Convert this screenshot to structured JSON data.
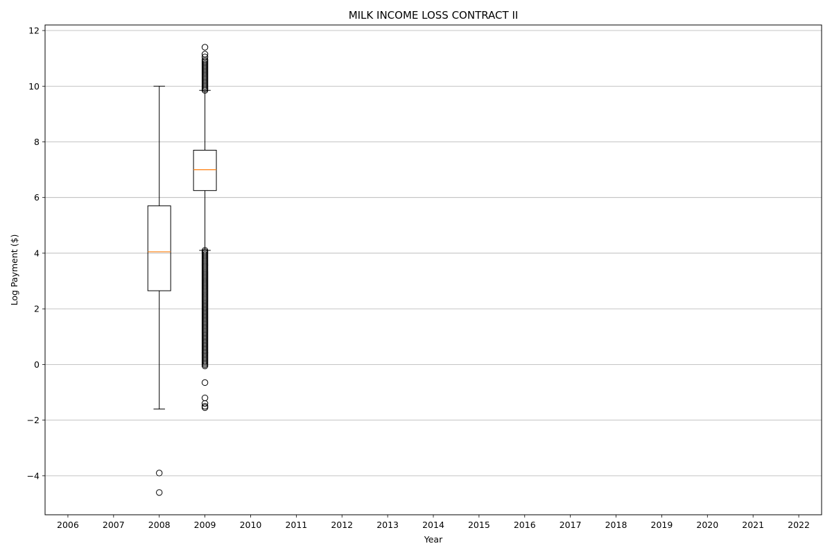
{
  "chart_data": {
    "type": "boxplot",
    "title": "MILK INCOME LOSS CONTRACT II",
    "xlabel": "Year",
    "ylabel": "Log Payment ($)",
    "categories": [
      "2006",
      "2007",
      "2008",
      "2009",
      "2010",
      "2011",
      "2012",
      "2013",
      "2014",
      "2015",
      "2016",
      "2017",
      "2018",
      "2019",
      "2020",
      "2021",
      "2022"
    ],
    "y_ticks": [
      -4,
      -2,
      0,
      2,
      4,
      6,
      8,
      10,
      12
    ],
    "y_tick_labels": [
      "−4",
      "−2",
      "0",
      "2",
      "4",
      "6",
      "8",
      "10",
      "12"
    ],
    "ylim": [
      -5.4,
      12.2
    ],
    "grid": "y",
    "colors": {
      "box": "#000000",
      "median": "#ff7f0e",
      "grid": "#b0b0b0"
    },
    "boxes": [
      {
        "category": "2008",
        "whisker_low": -1.6,
        "q1": 2.65,
        "median": 4.05,
        "q3": 5.7,
        "whisker_high": 10.0,
        "outliers": [
          -3.9,
          -4.6
        ]
      },
      {
        "category": "2009",
        "whisker_low": 4.1,
        "q1": 6.25,
        "median": 7.0,
        "q3": 7.7,
        "whisker_high": 9.85,
        "outliers": [
          11.4,
          11.15,
          11.05,
          10.95,
          10.9,
          10.85,
          10.8,
          10.75,
          10.7,
          10.65,
          10.6,
          10.55,
          10.5,
          10.45,
          10.4,
          10.35,
          10.3,
          10.25,
          10.2,
          10.15,
          10.1,
          10.05,
          10.0,
          9.95,
          9.9,
          9.85,
          4.1,
          4.05,
          4.0,
          3.95,
          3.9,
          3.85,
          3.8,
          3.75,
          3.7,
          3.65,
          3.6,
          3.55,
          3.5,
          3.45,
          3.4,
          3.35,
          3.3,
          3.25,
          3.2,
          3.15,
          3.1,
          3.05,
          3.0,
          2.95,
          2.9,
          2.85,
          2.8,
          2.75,
          2.7,
          2.65,
          2.6,
          2.55,
          2.5,
          2.45,
          2.4,
          2.35,
          2.3,
          2.25,
          2.2,
          2.15,
          2.1,
          2.05,
          2.0,
          1.95,
          1.9,
          1.85,
          1.8,
          1.75,
          1.7,
          1.65,
          1.6,
          1.55,
          1.5,
          1.45,
          1.4,
          1.35,
          1.3,
          1.25,
          1.2,
          1.15,
          1.1,
          1.05,
          1.0,
          0.95,
          0.9,
          0.85,
          0.8,
          0.75,
          0.7,
          0.65,
          0.6,
          0.55,
          0.5,
          0.45,
          0.4,
          0.35,
          0.3,
          0.25,
          0.2,
          0.15,
          0.1,
          0.05,
          0.0,
          -0.05,
          -0.65,
          -1.2,
          -1.4,
          -1.5,
          -1.55
        ]
      }
    ]
  }
}
